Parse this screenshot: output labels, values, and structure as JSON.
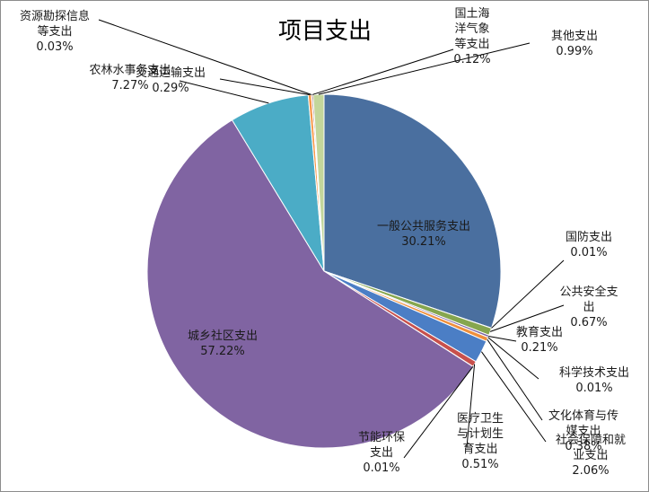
{
  "chart_data": {
    "type": "pie",
    "title": "项目支出",
    "slices": [
      {
        "name": "一般公共服务支出",
        "value": 30.21,
        "pct_label": "30.21%",
        "label_lines": [
          "一般公共服务支出"
        ],
        "color": "#4a6f9f"
      },
      {
        "name": "国防支出",
        "value": 0.01,
        "pct_label": "0.01%",
        "label_lines": [
          "国防支出"
        ],
        "color": "#bf4f4a"
      },
      {
        "name": "公共安全支出",
        "value": 0.67,
        "pct_label": "0.67%",
        "label_lines": [
          "公共安全支",
          "出"
        ],
        "color": "#86a64e"
      },
      {
        "name": "教育支出",
        "value": 0.21,
        "pct_label": "0.21%",
        "label_lines": [
          "教育支出"
        ],
        "color": "#7a5fa0"
      },
      {
        "name": "科学技术支出",
        "value": 0.01,
        "pct_label": "0.01%",
        "label_lines": [
          "科学技术支出"
        ],
        "color": "#3fa6c0"
      },
      {
        "name": "文化体育与传媒支出",
        "value": 0.38,
        "pct_label": "0.38%",
        "label_lines": [
          "文化体育与传",
          "媒支出"
        ],
        "color": "#ef8f3c"
      },
      {
        "name": "社会保障和就业支出",
        "value": 2.06,
        "pct_label": "2.06%",
        "label_lines": [
          "社会保障和就",
          "业支出"
        ],
        "color": "#4b7ec5"
      },
      {
        "name": "医疗卫生与计划生育支出",
        "value": 0.51,
        "pct_label": "0.51%",
        "label_lines": [
          "医疗卫生",
          "与计划生",
          "育支出"
        ],
        "color": "#c8504c"
      },
      {
        "name": "节能环保支出",
        "value": 0.01,
        "pct_label": "0.01%",
        "label_lines": [
          "节能环保",
          "支出"
        ],
        "color": "#9bbb59"
      },
      {
        "name": "城乡社区支出",
        "value": 57.22,
        "pct_label": "57.22%",
        "label_lines": [
          "城乡社区支出"
        ],
        "color": "#8064a2"
      },
      {
        "name": "农林水事务支出",
        "value": 7.27,
        "pct_label": "7.27%",
        "label_lines": [
          "农林水事务支出"
        ],
        "color": "#4bacc6"
      },
      {
        "name": "交通运输支出",
        "value": 0.29,
        "pct_label": "0.29%",
        "label_lines": [
          "交通运输支出"
        ],
        "color": "#f79646"
      },
      {
        "name": "资源勘探信息等支出",
        "value": 0.03,
        "pct_label": "0.03%",
        "label_lines": [
          "资源勘探信息",
          "等支出"
        ],
        "color": "#2c4d75"
      },
      {
        "name": "国土海洋气象等支出",
        "value": 0.12,
        "pct_label": "0.12%",
        "label_lines": [
          "国土海",
          "洋气象",
          "等支出"
        ],
        "color": "#772c2a"
      },
      {
        "name": "其他支出",
        "value": 0.99,
        "pct_label": "0.99%",
        "label_lines": [
          "其他支出"
        ],
        "color": "#c3d69b"
      }
    ]
  }
}
